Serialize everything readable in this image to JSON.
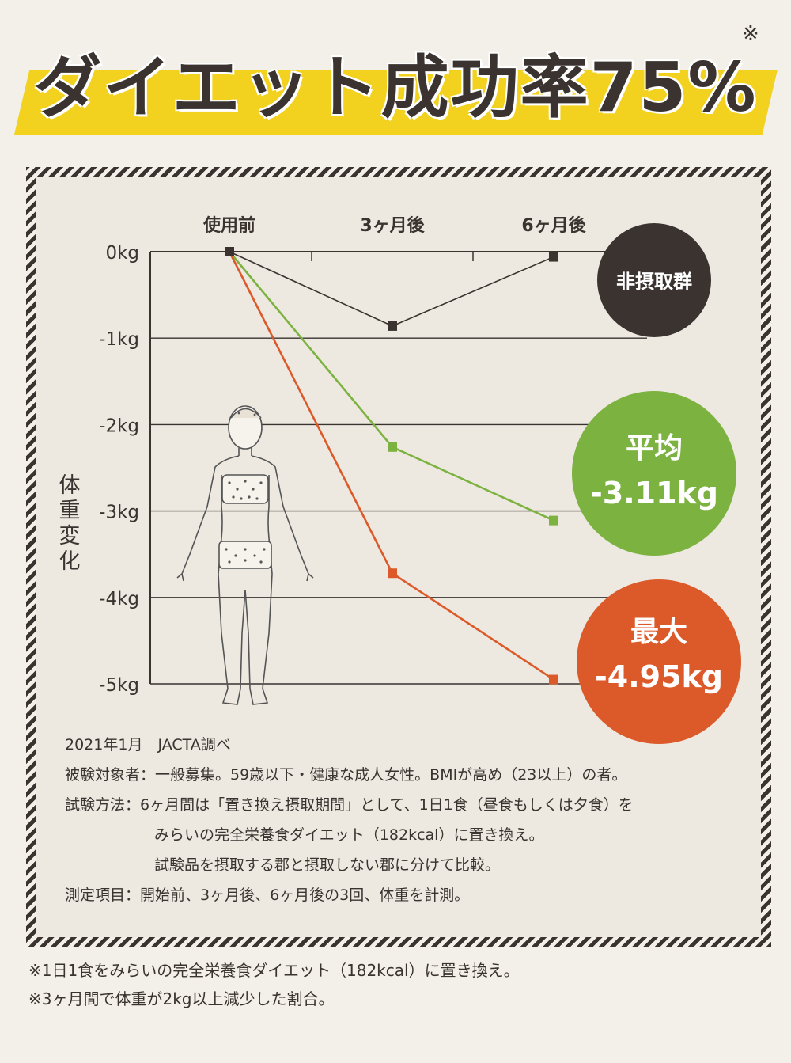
{
  "headline": {
    "text": "ダイエット成功率75%",
    "note_mark": "※"
  },
  "chart_data": {
    "type": "line",
    "categories": [
      "使用前",
      "3ヶ月後",
      "6ヶ月後"
    ],
    "y_ticks": [
      "0kg",
      "-1kg",
      "-2kg",
      "-3kg",
      "-4kg",
      "-5kg"
    ],
    "ylim": [
      -5,
      0
    ],
    "ylabel": "体重変化",
    "grid": true,
    "series": [
      {
        "name": "非摂取群",
        "values": [
          0,
          -0.86,
          -0.06
        ],
        "color": "#3a3330"
      },
      {
        "name": "平均",
        "values": [
          0,
          -2.26,
          -3.11
        ],
        "color": "#7cb23f"
      },
      {
        "name": "最大",
        "values": [
          0,
          -3.72,
          -4.95
        ],
        "color": "#dc5a2a"
      }
    ],
    "bubbles": [
      {
        "label": "非摂取群",
        "value": "",
        "color": "#3a3330"
      },
      {
        "label": "平均",
        "value": "-3.11kg",
        "color": "#7cb23f"
      },
      {
        "label": "最大",
        "value": "-4.95kg",
        "color": "#dc5a2a"
      }
    ]
  },
  "notes": [
    "2021年1月　JACTA調べ",
    "被験対象者：一般募集。59歳以下・健康な成人女性。BMIが高め（23以上）の者。",
    "試験方法：6ヶ月間は「置き換え摂取期間」として、1日1食（昼食もしくは夕食）を",
    "みらいの完全栄養食ダイエット（182kcal）に置き換え。",
    "試験品を摂取する郡と摂取しない郡に分けて比較。",
    "測定項目：開始前、3ヶ月後、6ヶ月後の3回、体重を計測。"
  ],
  "footer": [
    "※1日1食をみらいの完全栄養食ダイエット（182kcal）に置き換え。",
    "※3ヶ月間で体重が2kg以上減少した割合。"
  ]
}
